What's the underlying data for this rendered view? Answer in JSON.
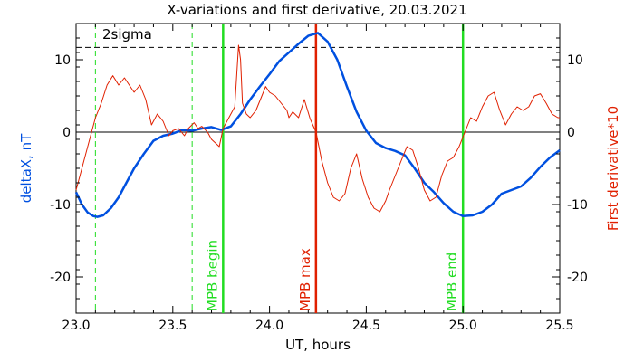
{
  "chart_data": {
    "type": "line",
    "title": "X-variations and first derivative, 20.03.2021",
    "xlabel": "UT, hours",
    "ylabel_left": "deltaX, nT",
    "ylabel_right": "First derivative*10",
    "xlim": [
      23.0,
      25.5
    ],
    "ylim": [
      -25,
      15
    ],
    "xticks": [
      "23.0",
      "23.5",
      "24.0",
      "24.5",
      "25.0",
      "25.5"
    ],
    "yticks_left": [
      "-20",
      "-10",
      "0",
      "10"
    ],
    "yticks_right": [
      "-20",
      "-10",
      "0",
      "10"
    ],
    "sigma_label": "2sigma",
    "sigma_level": 11.7,
    "zero_level": 0,
    "colors": {
      "deltaX": "#0050e0",
      "derivative": "#e02000",
      "event_green": "#22dd22",
      "event_red": "#e02000",
      "right_axis_label": "#e02000",
      "left_axis_label": "#0050e0"
    },
    "series": [
      {
        "name": "deltaX",
        "color": "#0050e0",
        "x": [
          23.0,
          23.03,
          23.06,
          23.09,
          23.11,
          23.14,
          23.18,
          23.22,
          23.26,
          23.3,
          23.35,
          23.4,
          23.45,
          23.5,
          23.55,
          23.6,
          23.65,
          23.7,
          23.75,
          23.8,
          23.85,
          23.9,
          23.95,
          24.0,
          24.05,
          24.1,
          24.15,
          24.2,
          24.25,
          24.3,
          24.35,
          24.4,
          24.45,
          24.5,
          24.55,
          24.6,
          24.65,
          24.7,
          24.75,
          24.8,
          24.85,
          24.9,
          24.95,
          25.0,
          25.05,
          25.1,
          25.15,
          25.2,
          25.25,
          25.3,
          25.35,
          25.4,
          25.45,
          25.5
        ],
        "y": [
          -8.3,
          -10.0,
          -11.1,
          -11.6,
          -11.7,
          -11.5,
          -10.5,
          -9.0,
          -7.0,
          -5.0,
          -3.0,
          -1.2,
          -0.5,
          -0.2,
          0.3,
          0.2,
          0.5,
          0.7,
          0.3,
          0.8,
          2.5,
          4.5,
          6.3,
          8.0,
          9.8,
          11.0,
          12.2,
          13.3,
          13.7,
          12.5,
          10.0,
          6.3,
          2.8,
          0.2,
          -1.5,
          -2.2,
          -2.6,
          -3.2,
          -5.0,
          -7.0,
          -8.3,
          -9.8,
          -11.0,
          -11.6,
          -11.5,
          -11.0,
          -10.0,
          -8.5,
          -8.0,
          -7.5,
          -6.3,
          -4.8,
          -3.5,
          -2.5
        ]
      },
      {
        "name": "First derivative*10",
        "color": "#e02000",
        "x": [
          23.0,
          23.02,
          23.05,
          23.08,
          23.1,
          23.13,
          23.16,
          23.19,
          23.22,
          23.25,
          23.28,
          23.3,
          23.33,
          23.36,
          23.39,
          23.42,
          23.45,
          23.48,
          23.5,
          23.53,
          23.56,
          23.58,
          23.61,
          23.63,
          23.65,
          23.68,
          23.7,
          23.72,
          23.74,
          23.76,
          23.78,
          23.8,
          23.82,
          23.84,
          23.85,
          23.86,
          23.88,
          23.9,
          23.93,
          23.96,
          23.98,
          24.0,
          24.03,
          24.06,
          24.09,
          24.1,
          24.12,
          24.15,
          24.18,
          24.21,
          24.24,
          24.27,
          24.3,
          24.33,
          24.36,
          24.39,
          24.42,
          24.45,
          24.48,
          24.51,
          24.54,
          24.57,
          24.6,
          24.62,
          24.65,
          24.68,
          24.71,
          24.74,
          24.77,
          24.8,
          24.83,
          24.86,
          24.89,
          24.92,
          24.95,
          24.98,
          25.01,
          25.04,
          25.07,
          25.1,
          25.13,
          25.16,
          25.19,
          25.22,
          25.25,
          25.28,
          25.31,
          25.34,
          25.37,
          25.4,
          25.43,
          25.46,
          25.49,
          25.5
        ],
        "y": [
          -8.0,
          -6.0,
          -3.0,
          0.0,
          2.0,
          4.0,
          6.5,
          7.8,
          6.5,
          7.5,
          6.3,
          5.5,
          6.5,
          4.5,
          1.0,
          2.5,
          1.5,
          -0.5,
          0.2,
          0.5,
          -0.5,
          0.5,
          1.3,
          0.5,
          0.8,
          0.0,
          -1.0,
          -1.5,
          -2.0,
          0.5,
          1.5,
          2.5,
          3.5,
          12.0,
          10.0,
          4.0,
          2.5,
          2.0,
          3.0,
          5.0,
          6.3,
          5.5,
          5.0,
          4.0,
          3.0,
          2.0,
          2.8,
          2.0,
          4.5,
          1.8,
          0.0,
          -4.0,
          -7.0,
          -9.0,
          -9.5,
          -8.5,
          -5.0,
          -3.0,
          -6.5,
          -9.0,
          -10.5,
          -11.0,
          -9.5,
          -8.0,
          -6.0,
          -4.0,
          -2.0,
          -2.5,
          -5.0,
          -8.0,
          -9.5,
          -9.0,
          -6.0,
          -4.0,
          -3.5,
          -2.0,
          0.0,
          2.0,
          1.5,
          3.5,
          5.0,
          5.5,
          3.0,
          1.0,
          2.5,
          3.5,
          3.0,
          3.5,
          5.0,
          5.3,
          4.0,
          2.5,
          2.0,
          2.0
        ]
      }
    ],
    "event_lines": [
      {
        "x": 23.1,
        "style": "dashed",
        "color": "#22dd22",
        "label": ""
      },
      {
        "x": 23.6,
        "style": "dashed",
        "color": "#22dd22",
        "label": ""
      },
      {
        "x": 23.76,
        "style": "solid",
        "color": "#22dd22",
        "label": "MPB begin"
      },
      {
        "x": 24.24,
        "style": "solid",
        "color": "#e02000",
        "label": "MPB max"
      },
      {
        "x": 25.0,
        "style": "solid",
        "color": "#22dd22",
        "label": "MPB end"
      }
    ]
  }
}
